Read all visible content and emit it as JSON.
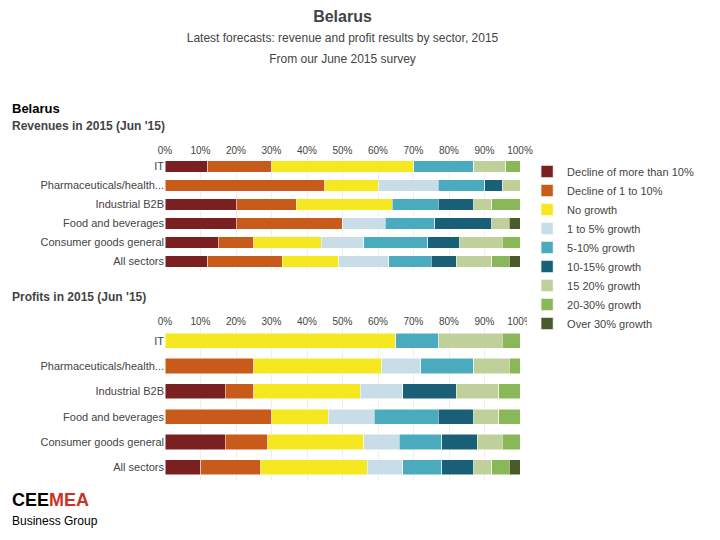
{
  "title": "Belarus",
  "subtitle": [
    "Latest forecasts: revenue and profit results by sector, 2015",
    "From our June 2015 survey"
  ],
  "annotations": [
    {
      "text": "CEE",
      "color": "#000000"
    },
    {
      "text": "MEA",
      "color": "#CC3322"
    },
    {
      "text": "Business Group",
      "color": "#000000"
    }
  ],
  "chart_data": [
    {
      "type": "bar",
      "orientation": "horizontal",
      "stacked": true,
      "grid": true,
      "legend": "right",
      "title": "Revenues in 2015 (Jun '15)",
      "annotations": [
        {
          "text": "Belarus"
        }
      ],
      "categories": [
        "All sectors",
        "Consumer goods general",
        "Food and beverages",
        "Industrial B2B",
        "Pharmaceuticals/health...",
        "IT"
      ],
      "xlim": [
        0,
        100
      ],
      "xticks": [
        {
          "value": 0,
          "label": "0%"
        },
        {
          "value": 10,
          "label": "10%"
        },
        {
          "value": 20,
          "label": "20%"
        },
        {
          "value": 30,
          "label": "30%"
        },
        {
          "value": 40,
          "label": "40%"
        },
        {
          "value": 50,
          "label": "50%"
        },
        {
          "value": 60,
          "label": "60%"
        },
        {
          "value": 70,
          "label": "70%"
        },
        {
          "value": 80,
          "label": "80%"
        },
        {
          "value": 90,
          "label": "90%"
        },
        {
          "value": 100,
          "label": "100%"
        }
      ],
      "series": [
        {
          "name": "Decline of more than 10%",
          "color": "#7B2020",
          "values": [
            12,
            15,
            20,
            20,
            0,
            12
          ]
        },
        {
          "name": "Decline of 1 to 10%",
          "color": "#C85A1A",
          "values": [
            21,
            10,
            30,
            17,
            45,
            18
          ]
        },
        {
          "name": "No growth",
          "color": "#F5E820",
          "values": [
            16,
            19,
            0,
            27,
            15,
            40
          ]
        },
        {
          "name": "1 to 5% growth",
          "color": "#C8DDE8",
          "values": [
            14,
            12,
            12,
            0,
            17,
            0
          ]
        },
        {
          "name": "5-10% growth",
          "color": "#4AABBF",
          "values": [
            12,
            18,
            14,
            13,
            13,
            17
          ]
        },
        {
          "name": "10-15% growth",
          "color": "#1A5F78",
          "values": [
            7,
            9,
            16,
            10,
            5,
            0
          ]
        },
        {
          "name": "15 20% growth",
          "color": "#C0D09A",
          "values": [
            10,
            12,
            5,
            5,
            5,
            9
          ]
        },
        {
          "name": "20-30% growth",
          "color": "#8AB858",
          "values": [
            5,
            5,
            0,
            8,
            0,
            4
          ]
        },
        {
          "name": "Over 30% growth",
          "color": "#4A5A2A",
          "values": [
            3,
            0,
            3,
            0,
            0,
            0
          ]
        }
      ]
    },
    {
      "type": "bar",
      "orientation": "horizontal",
      "stacked": true,
      "grid": true,
      "title": "Profits in 2015 (Jun '15)",
      "categories": [
        "All sectors",
        "Consumer goods general",
        "Food and beverages",
        "Industrial B2B",
        "Pharmaceuticals/health...",
        "IT"
      ],
      "xlim": [
        0,
        100
      ],
      "xticks": [
        {
          "value": 0,
          "label": "0%"
        },
        {
          "value": 10,
          "label": "10%"
        },
        {
          "value": 20,
          "label": "20%"
        },
        {
          "value": 30,
          "label": "30%"
        },
        {
          "value": 40,
          "label": "40%"
        },
        {
          "value": 50,
          "label": "50%"
        },
        {
          "value": 60,
          "label": "60%"
        },
        {
          "value": 70,
          "label": "70%"
        },
        {
          "value": 80,
          "label": "80%"
        },
        {
          "value": 90,
          "label": "90%"
        },
        {
          "value": 100,
          "label": "100%"
        }
      ],
      "series": [
        {
          "name": "Decline of more than 10%",
          "color": "#7B2020",
          "values": [
            10,
            17,
            0,
            17,
            0,
            0
          ]
        },
        {
          "name": "Decline of 1 to 10%",
          "color": "#C85A1A",
          "values": [
            17,
            12,
            30,
            8,
            25,
            0
          ]
        },
        {
          "name": "No growth",
          "color": "#F5E820",
          "values": [
            30,
            27,
            16,
            30,
            36,
            65
          ]
        },
        {
          "name": "1 to 5% growth",
          "color": "#C8DDE8",
          "values": [
            10,
            10,
            13,
            12,
            11,
            0
          ]
        },
        {
          "name": "5-10% growth",
          "color": "#4AABBF",
          "values": [
            11,
            12,
            18,
            0,
            15,
            12
          ]
        },
        {
          "name": "10-15% growth",
          "color": "#1A5F78",
          "values": [
            9,
            10,
            10,
            15,
            0,
            0
          ]
        },
        {
          "name": "15 20% growth",
          "color": "#C0D09A",
          "values": [
            5,
            7,
            7,
            12,
            10,
            18
          ]
        },
        {
          "name": "20-30% growth",
          "color": "#8AB858",
          "values": [
            5,
            5,
            6,
            6,
            3,
            5
          ]
        },
        {
          "name": "Over 30% growth",
          "color": "#4A5A2A",
          "values": [
            3,
            0,
            0,
            0,
            0,
            0
          ]
        }
      ]
    }
  ]
}
